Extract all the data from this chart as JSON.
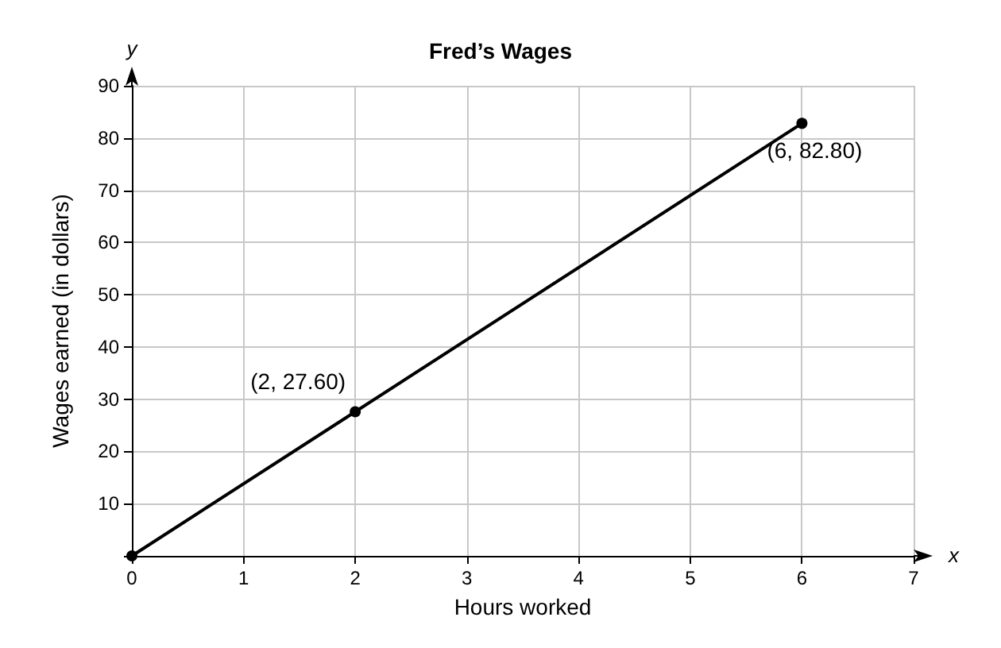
{
  "chart_data": {
    "type": "line",
    "title": "Fred’s Wages",
    "xlabel": "Hours worked",
    "ylabel": "Wages earned (in dollars)",
    "x": [
      0,
      2,
      6
    ],
    "series": [
      {
        "color": "#000000",
        "values": [
          0,
          27.6,
          82.8
        ]
      }
    ],
    "xlim": [
      0,
      7
    ],
    "xticks": [
      0,
      1,
      2,
      3,
      4,
      5,
      6,
      7
    ],
    "ylim": [
      0,
      90
    ],
    "yticks": [
      {
        "value": 0,
        "label": null
      },
      10,
      20,
      30,
      40,
      50,
      60,
      70,
      80,
      90
    ],
    "grid": true,
    "marker": "circle",
    "line_style": "solid",
    "annotations": [
      "y",
      "x",
      {
        "text": "(2, 27.60)",
        "x": 2,
        "y": 27.6
      },
      {
        "text": "(6, 82.80)",
        "x": 6,
        "y": 82.8
      }
    ]
  }
}
